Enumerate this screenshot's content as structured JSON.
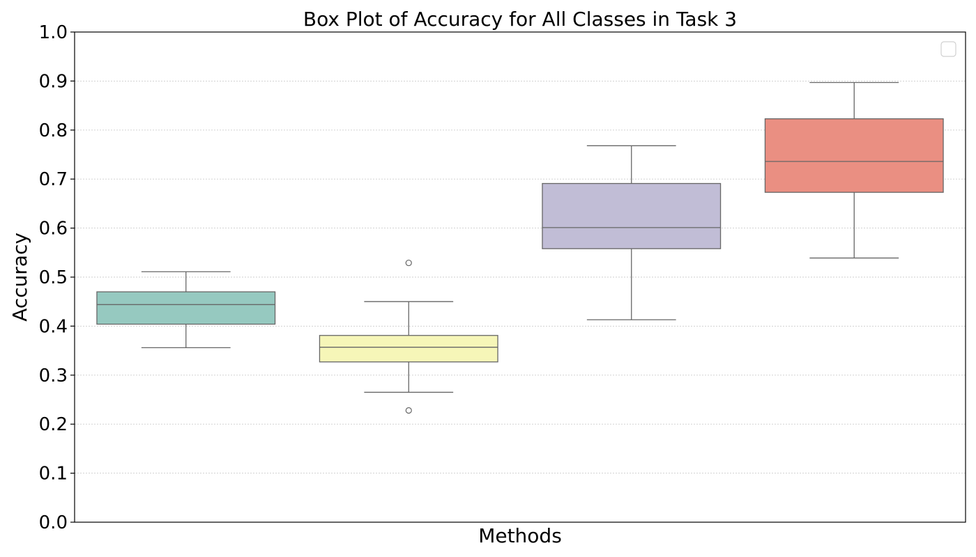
{
  "chart_data": {
    "type": "box",
    "title": "Box Plot of Accuracy for All Classes in Task 3",
    "xlabel": "Methods",
    "ylabel": "Accuracy",
    "ylim": [
      0,
      1
    ],
    "yticks": [
      "0.0",
      "0.1",
      "0.2",
      "0.3",
      "0.4",
      "0.5",
      "0.6",
      "0.7",
      "0.8",
      "0.9",
      "1.0"
    ],
    "grid": "horizontal-dotted",
    "legend": "top-right-empty",
    "series": [
      {
        "color": "#96c9c0",
        "whisker_low": 0.356,
        "q1": 0.404,
        "median": 0.444,
        "q3": 0.47,
        "whisker_high": 0.511,
        "outliers": []
      },
      {
        "color": "#f6f6b8",
        "whisker_low": 0.265,
        "q1": 0.327,
        "median": 0.357,
        "q3": 0.381,
        "whisker_high": 0.45,
        "outliers": [
          0.529,
          0.228
        ]
      },
      {
        "color": "#c1bdd6",
        "whisker_low": 0.413,
        "q1": 0.558,
        "median": 0.601,
        "q3": 0.691,
        "whisker_high": 0.768,
        "outliers": []
      },
      {
        "color": "#ea8f82",
        "whisker_low": 0.539,
        "q1": 0.673,
        "median": 0.736,
        "q3": 0.823,
        "whisker_high": 0.897,
        "outliers": []
      }
    ]
  }
}
